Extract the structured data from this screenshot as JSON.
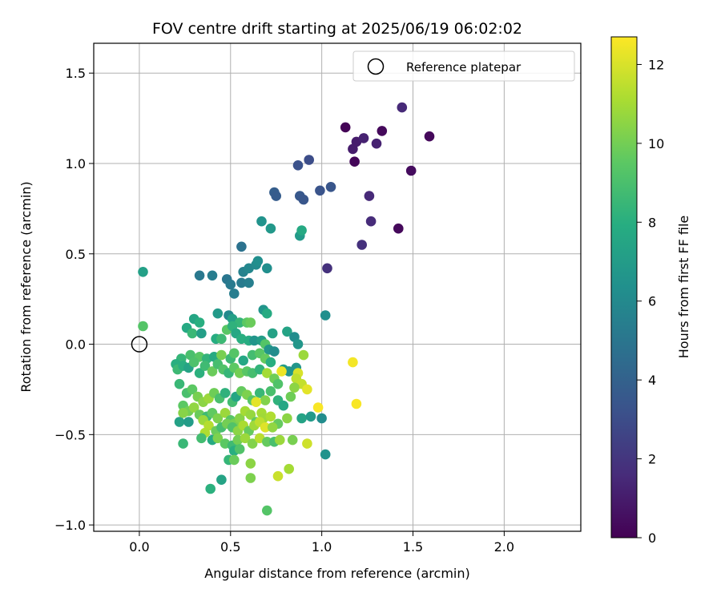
{
  "chart_data": {
    "type": "scatter",
    "title": "FOV centre drift starting at 2025/06/19 06:02:02",
    "xlabel": "Angular distance from reference (arcmin)",
    "ylabel": "Rotation from reference (arcmin)",
    "xlim": [
      -0.25,
      2.42
    ],
    "ylim": [
      -1.035,
      1.665
    ],
    "xticks": [
      0.0,
      0.5,
      1.0,
      1.5,
      2.0
    ],
    "xtick_labels": [
      "0.0",
      "0.5",
      "1.0",
      "1.5",
      "2.0"
    ],
    "yticks": [
      -1.0,
      -0.5,
      0.0,
      0.5,
      1.0,
      1.5
    ],
    "ytick_labels": [
      "−1.0",
      "−0.5",
      "0.0",
      "0.5",
      "1.0",
      "1.5"
    ],
    "grid": true,
    "legend": {
      "placement": "top-right",
      "entries": [
        "Reference platepar"
      ]
    },
    "reference_point": {
      "x": 0.0,
      "y": 0.0,
      "marker": "open-circle"
    },
    "colorbar": {
      "label": "Hours from first FF file",
      "range": [
        0,
        12.7
      ],
      "ticks": [
        0,
        2,
        4,
        6,
        8,
        10,
        12
      ],
      "tick_labels": [
        "0",
        "2",
        "4",
        "6",
        "8",
        "10",
        "12"
      ],
      "colormap": "viridis"
    },
    "points": [
      [
        1.13,
        1.2,
        0.1
      ],
      [
        1.33,
        1.18,
        0.3
      ],
      [
        1.59,
        1.15,
        0.3
      ],
      [
        1.18,
        1.01,
        0.2
      ],
      [
        1.49,
        0.96,
        0.4
      ],
      [
        1.42,
        0.64,
        0.3
      ],
      [
        1.17,
        1.08,
        1.0
      ],
      [
        1.19,
        1.12,
        1.0
      ],
      [
        1.23,
        1.14,
        1.2
      ],
      [
        1.3,
        1.11,
        1.2
      ],
      [
        1.44,
        1.31,
        1.5
      ],
      [
        1.26,
        0.82,
        1.5
      ],
      [
        1.27,
        0.68,
        1.6
      ],
      [
        1.22,
        0.55,
        1.8
      ],
      [
        1.03,
        0.42,
        1.8
      ],
      [
        0.93,
        1.02,
        3.0
      ],
      [
        0.87,
        0.99,
        3.2
      ],
      [
        0.99,
        0.85,
        3.3
      ],
      [
        1.05,
        0.87,
        3.4
      ],
      [
        0.88,
        0.82,
        3.5
      ],
      [
        0.9,
        0.8,
        3.4
      ],
      [
        0.74,
        0.84,
        3.8
      ],
      [
        0.75,
        0.82,
        3.7
      ],
      [
        0.56,
        0.54,
        4.8
      ],
      [
        0.33,
        0.38,
        5.1
      ],
      [
        0.4,
        0.38,
        5.4
      ],
      [
        0.48,
        0.36,
        5.0
      ],
      [
        0.5,
        0.33,
        5.2
      ],
      [
        0.52,
        0.28,
        5.4
      ],
      [
        0.56,
        0.34,
        5.3
      ],
      [
        0.6,
        0.34,
        5.5
      ],
      [
        0.57,
        0.4,
        5.6
      ],
      [
        0.6,
        0.42,
        5.9
      ],
      [
        0.64,
        0.44,
        6.1
      ],
      [
        0.65,
        0.46,
        6.3
      ],
      [
        0.7,
        0.42,
        6.3
      ],
      [
        0.67,
        0.68,
        6.5
      ],
      [
        0.72,
        0.64,
        6.8
      ],
      [
        0.88,
        0.6,
        6.9
      ],
      [
        0.89,
        0.63,
        7.7
      ],
      [
        1.02,
        0.16,
        6.3
      ],
      [
        0.02,
        0.4,
        7.2
      ],
      [
        0.02,
        0.1,
        9.3
      ],
      [
        0.3,
        0.14,
        7.5
      ],
      [
        0.33,
        0.12,
        8.0
      ],
      [
        0.43,
        0.17,
        6.9
      ],
      [
        0.49,
        0.16,
        6.0
      ],
      [
        0.51,
        0.14,
        7.2
      ],
      [
        0.55,
        0.12,
        8.4
      ],
      [
        0.59,
        0.12,
        9.5
      ],
      [
        0.61,
        0.12,
        9.8
      ],
      [
        0.68,
        0.19,
        6.6
      ],
      [
        0.7,
        0.17,
        7.8
      ],
      [
        0.73,
        0.06,
        7.3
      ],
      [
        0.81,
        0.07,
        7.4
      ],
      [
        0.85,
        0.04,
        6.2
      ],
      [
        0.87,
        0.0,
        6.7
      ],
      [
        0.26,
        0.09,
        7.7
      ],
      [
        0.29,
        0.06,
        8.5
      ],
      [
        0.34,
        0.06,
        7.1
      ],
      [
        0.42,
        0.03,
        7.9
      ],
      [
        0.45,
        0.03,
        8.6
      ],
      [
        0.48,
        0.08,
        9.4
      ],
      [
        0.51,
        0.1,
        8.2
      ],
      [
        0.53,
        0.06,
        7.6
      ],
      [
        0.56,
        0.03,
        8.0
      ],
      [
        0.6,
        0.02,
        7.9
      ],
      [
        0.63,
        0.02,
        6.6
      ],
      [
        0.67,
        0.02,
        7.1
      ],
      [
        0.69,
        0.0,
        9.3
      ],
      [
        0.71,
        -0.03,
        6.7
      ],
      [
        0.74,
        -0.04,
        6.2
      ],
      [
        0.9,
        -0.06,
        10.8
      ],
      [
        0.23,
        -0.08,
        8.4
      ],
      [
        0.28,
        -0.06,
        9.0
      ],
      [
        0.33,
        -0.07,
        9.4
      ],
      [
        0.37,
        -0.08,
        8.3
      ],
      [
        0.41,
        -0.07,
        7.8
      ],
      [
        0.45,
        -0.06,
        10.1
      ],
      [
        0.5,
        -0.08,
        8.6
      ],
      [
        0.52,
        -0.05,
        9.3
      ],
      [
        0.57,
        -0.09,
        7.6
      ],
      [
        0.62,
        -0.06,
        8.8
      ],
      [
        0.66,
        -0.05,
        9.4
      ],
      [
        0.69,
        -0.08,
        9.7
      ],
      [
        0.72,
        -0.1,
        8.0
      ],
      [
        0.79,
        -0.14,
        7.0
      ],
      [
        0.82,
        -0.15,
        6.6
      ],
      [
        0.86,
        -0.13,
        6.7
      ],
      [
        0.87,
        -0.16,
        12.0
      ],
      [
        0.86,
        -0.19,
        11.5
      ],
      [
        0.78,
        -0.15,
        12.4
      ],
      [
        0.2,
        -0.11,
        8.0
      ],
      [
        0.21,
        -0.14,
        8.6
      ],
      [
        0.24,
        -0.12,
        8.0
      ],
      [
        0.27,
        -0.13,
        7.4
      ],
      [
        0.3,
        -0.1,
        9.1
      ],
      [
        0.33,
        -0.16,
        8.1
      ],
      [
        0.36,
        -0.12,
        8.7
      ],
      [
        0.4,
        -0.15,
        9.8
      ],
      [
        0.43,
        -0.11,
        8.9
      ],
      [
        0.46,
        -0.14,
        9.2
      ],
      [
        0.49,
        -0.16,
        8.4
      ],
      [
        0.52,
        -0.13,
        9.5
      ],
      [
        0.55,
        -0.16,
        10.0
      ],
      [
        0.59,
        -0.15,
        9.4
      ],
      [
        0.62,
        -0.16,
        8.9
      ],
      [
        0.66,
        -0.14,
        8.3
      ],
      [
        0.7,
        -0.16,
        11.0
      ],
      [
        0.74,
        -0.19,
        9.9
      ],
      [
        0.76,
        -0.22,
        9.2
      ],
      [
        0.89,
        -0.22,
        11.6
      ],
      [
        0.92,
        -0.25,
        12.2
      ],
      [
        1.17,
        -0.1,
        12.5
      ],
      [
        1.19,
        -0.33,
        12.6
      ],
      [
        0.22,
        -0.22,
        8.5
      ],
      [
        0.26,
        -0.27,
        9.0
      ],
      [
        0.29,
        -0.25,
        9.5
      ],
      [
        0.32,
        -0.29,
        10.1
      ],
      [
        0.35,
        -0.32,
        10.5
      ],
      [
        0.38,
        -0.3,
        10.8
      ],
      [
        0.41,
        -0.27,
        9.9
      ],
      [
        0.44,
        -0.3,
        9.0
      ],
      [
        0.47,
        -0.27,
        8.2
      ],
      [
        0.51,
        -0.32,
        8.8
      ],
      [
        0.53,
        -0.29,
        7.5
      ],
      [
        0.56,
        -0.26,
        9.7
      ],
      [
        0.59,
        -0.28,
        10.2
      ],
      [
        0.62,
        -0.31,
        9.4
      ],
      [
        0.66,
        -0.27,
        8.5
      ],
      [
        0.69,
        -0.31,
        10.3
      ],
      [
        0.72,
        -0.26,
        9.0
      ],
      [
        0.76,
        -0.31,
        8.2
      ],
      [
        0.79,
        -0.34,
        7.6
      ],
      [
        0.83,
        -0.29,
        9.9
      ],
      [
        0.85,
        -0.24,
        10.5
      ],
      [
        0.64,
        -0.32,
        12.2
      ],
      [
        0.67,
        -0.38,
        11.0
      ],
      [
        0.24,
        -0.34,
        9.5
      ],
      [
        0.27,
        -0.37,
        10.0
      ],
      [
        0.3,
        -0.35,
        10.6
      ],
      [
        0.33,
        -0.39,
        9.8
      ],
      [
        0.37,
        -0.4,
        8.7
      ],
      [
        0.4,
        -0.38,
        9.6
      ],
      [
        0.43,
        -0.41,
        10.2
      ],
      [
        0.47,
        -0.38,
        10.8
      ],
      [
        0.5,
        -0.42,
        9.4
      ],
      [
        0.52,
        -0.44,
        10.1
      ],
      [
        0.55,
        -0.41,
        10.4
      ],
      [
        0.58,
        -0.37,
        11.0
      ],
      [
        0.61,
        -0.39,
        10.7
      ],
      [
        0.64,
        -0.43,
        9.6
      ],
      [
        0.68,
        -0.41,
        10.9
      ],
      [
        0.72,
        -0.4,
        11.2
      ],
      [
        0.76,
        -0.44,
        9.7
      ],
      [
        0.81,
        -0.41,
        10.5
      ],
      [
        0.89,
        -0.41,
        7.4
      ],
      [
        0.94,
        -0.4,
        6.9
      ],
      [
        0.98,
        -0.35,
        12.6
      ],
      [
        1.0,
        -0.41,
        6.2
      ],
      [
        0.22,
        -0.43,
        7.3
      ],
      [
        0.27,
        -0.43,
        7.0
      ],
      [
        0.24,
        -0.38,
        10.4
      ],
      [
        0.35,
        -0.42,
        10.8
      ],
      [
        0.38,
        -0.45,
        11.3
      ],
      [
        0.42,
        -0.48,
        9.8
      ],
      [
        0.45,
        -0.46,
        8.9
      ],
      [
        0.48,
        -0.44,
        10.0
      ],
      [
        0.51,
        -0.46,
        9.2
      ],
      [
        0.54,
        -0.48,
        10.5
      ],
      [
        0.57,
        -0.45,
        11.1
      ],
      [
        0.6,
        -0.48,
        9.7
      ],
      [
        0.63,
        -0.45,
        10.9
      ],
      [
        0.66,
        -0.43,
        11.5
      ],
      [
        0.69,
        -0.46,
        12.1
      ],
      [
        0.73,
        -0.46,
        10.6
      ],
      [
        0.36,
        -0.49,
        11.2
      ],
      [
        0.4,
        -0.53,
        7.8
      ],
      [
        0.43,
        -0.52,
        10.2
      ],
      [
        0.47,
        -0.55,
        9.5
      ],
      [
        0.51,
        -0.56,
        8.7
      ],
      [
        0.54,
        -0.53,
        10.0
      ],
      [
        0.58,
        -0.52,
        10.8
      ],
      [
        0.62,
        -0.55,
        10.3
      ],
      [
        0.66,
        -0.52,
        11.4
      ],
      [
        0.7,
        -0.54,
        9.7
      ],
      [
        0.74,
        -0.54,
        9.0
      ],
      [
        0.77,
        -0.53,
        10.8
      ],
      [
        0.84,
        -0.53,
        10.1
      ],
      [
        0.92,
        -0.55,
        11.8
      ],
      [
        0.24,
        -0.55,
        8.5
      ],
      [
        0.34,
        -0.52,
        8.8
      ],
      [
        0.52,
        -0.59,
        8.0
      ],
      [
        0.55,
        -0.58,
        9.2
      ],
      [
        0.49,
        -0.64,
        8.4
      ],
      [
        0.52,
        -0.64,
        9.8
      ],
      [
        1.02,
        -0.61,
        6.5
      ],
      [
        0.61,
        -0.66,
        10.5
      ],
      [
        0.76,
        -0.73,
        11.7
      ],
      [
        0.82,
        -0.69,
        11.0
      ],
      [
        0.61,
        -0.74,
        10.2
      ],
      [
        0.39,
        -0.8,
        8.1
      ],
      [
        0.45,
        -0.75,
        7.4
      ],
      [
        0.7,
        -0.92,
        9.3
      ]
    ]
  }
}
